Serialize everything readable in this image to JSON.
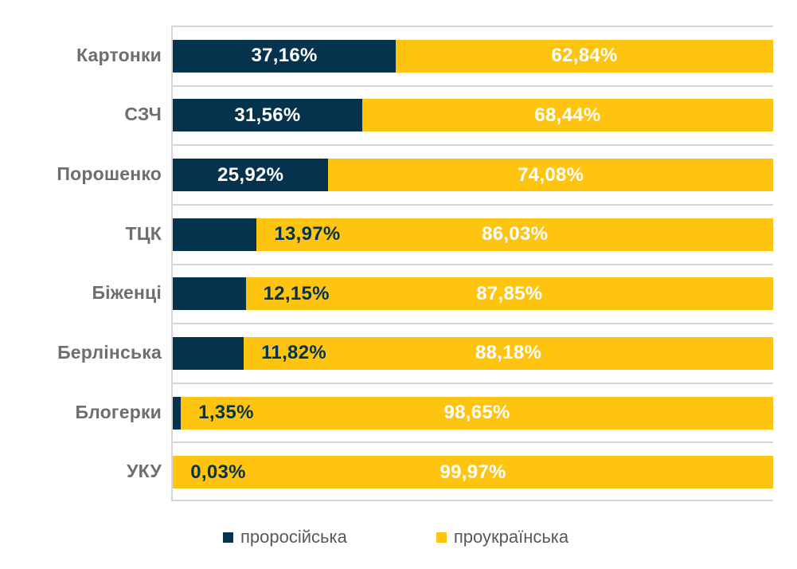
{
  "chart_data": {
    "type": "bar",
    "orientation": "horizontal",
    "stacked": true,
    "title": "",
    "xlabel": "",
    "ylabel": "",
    "xlim": [
      0,
      100
    ],
    "grid": true,
    "legend_position": "bottom",
    "categories": [
      "Картонки",
      "СЗЧ",
      "Порошенко",
      "ТЦК",
      "Біженці",
      "Берлінська",
      "Блогерки",
      "УКУ"
    ],
    "series": [
      {
        "name": "проросійська",
        "color": "#05324D",
        "values": [
          37.16,
          31.56,
          25.92,
          13.97,
          12.15,
          11.82,
          1.35,
          0.03
        ],
        "labels": [
          "37,16%",
          "31,56%",
          "25,92%",
          "13,97%",
          "12,15%",
          "11,82%",
          "1,35%",
          "0,03%"
        ]
      },
      {
        "name": "проукраїнська",
        "color": "#FFC40F",
        "values": [
          62.84,
          68.44,
          74.08,
          86.03,
          87.85,
          88.18,
          98.65,
          99.97
        ],
        "labels": [
          "62,84%",
          "68,44%",
          "74,08%",
          "86,03%",
          "87,85%",
          "88,18%",
          "98,65%",
          "99,97%"
        ]
      }
    ]
  },
  "style_colors": {
    "prorussian": "#05324D",
    "proukrainian": "#FFC40F",
    "gridline": "#d6d6d6",
    "category_text": "#6e6e6e",
    "legend_text": "#595959",
    "inside_label_text": "#ffffff"
  }
}
